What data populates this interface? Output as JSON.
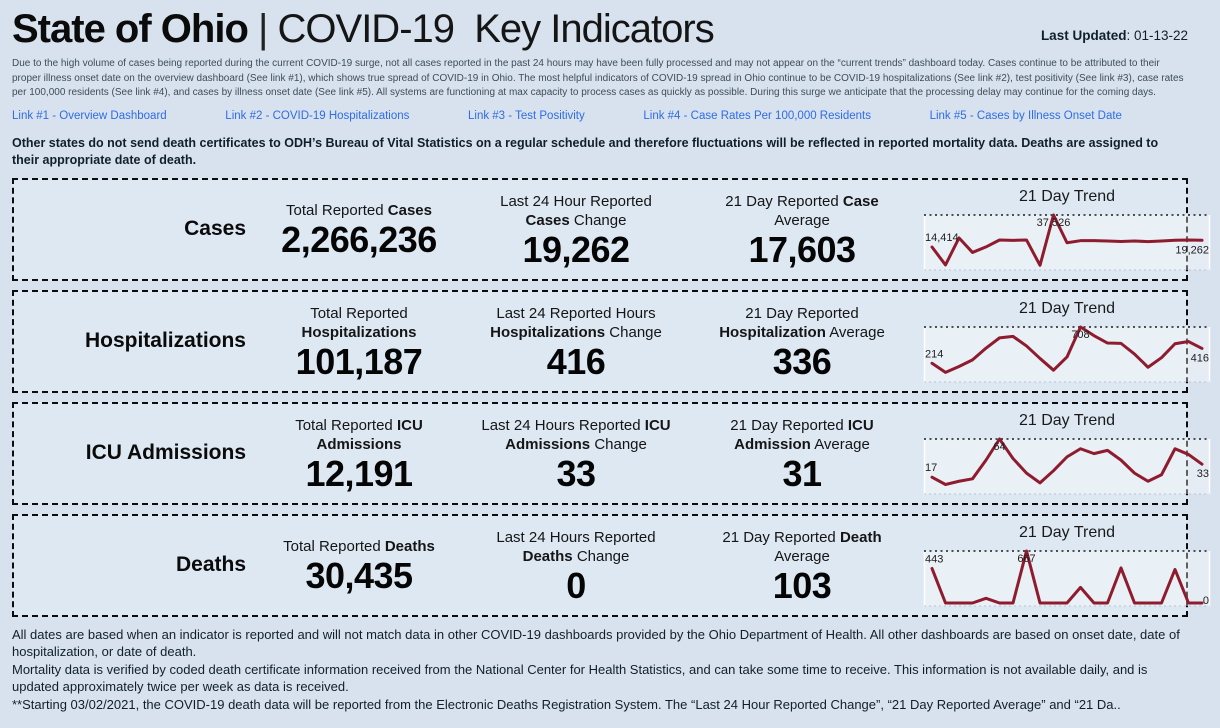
{
  "header": {
    "title_primary": "State of Ohio",
    "title_separator": " | ",
    "title_secondary": "COVID-19  Key Indicators",
    "last_updated_label": "Last Updated",
    "last_updated_value": ": 01-13-22"
  },
  "disclaimer": "Due to the high volume of cases being reported during the current COVID-19 surge, not all cases reported in the past 24 hours may have been fully processed and may not appear on the “current trends” dashboard today. Cases continue to be attributed to their proper illness onset date on the overview dashboard (See link #1), which shows true spread of COVID-19 in Ohio. The most helpful indicators of COVID-19 spread in Ohio continue to be COVID-19 hospitalizations (See link #2), test positivity (See link #3), case rates per 100,000 residents (See link #4), and cases by illness onset date (See link #5). All systems are functioning at max capacity to process cases as quickly as possible. During this surge we anticipate that the processing delay may continue for the coming days.",
  "links": [
    {
      "label": "Link #1 - Overview Dashboard"
    },
    {
      "label": "Link #2 - COVID-19 Hospitalizations"
    },
    {
      "label": "Link #3 - Test Positivity"
    },
    {
      "label": "Link #4 - Case Rates Per 100,000 Residents"
    },
    {
      "label": "Link #5 - Cases by Illness Onset Date"
    }
  ],
  "death_note": "Other states do not send death certificates to ODH’s Bureau of Vital Statistics on a regular schedule and therefore fluctuations will be reflected in reported mortality data. Deaths are assigned to their appropriate date of death.",
  "rows": [
    {
      "label": "Cases",
      "trend_title": "21 Day Trend",
      "stats": [
        {
          "heading_pre": "Total Reported ",
          "heading_bold": "Cases",
          "heading_post": "",
          "value": "2,266,236"
        },
        {
          "heading_pre": "Last 24 Hour Reported ",
          "heading_bold": "Cases",
          "heading_post": " Change",
          "value": "19,262"
        },
        {
          "heading_pre": "21 Day Reported ",
          "heading_bold": "Case",
          "heading_post": " Average",
          "value": "17,603"
        }
      ]
    },
    {
      "label": "Hospitalizations",
      "trend_title": "21 Day Trend",
      "stats": [
        {
          "heading_pre": "Total Reported ",
          "heading_bold": "Hospitalizations",
          "heading_post": "",
          "value": "101,187"
        },
        {
          "heading_pre": "Last 24 Reported Hours ",
          "heading_bold": "Hospitalizations",
          "heading_post": " Change",
          "value": "416"
        },
        {
          "heading_pre": "21 Day Reported ",
          "heading_bold": "Hospitalization",
          "heading_post": " Average",
          "value": "336"
        }
      ]
    },
    {
      "label": "ICU Admissions",
      "trend_title": "21 Day Trend",
      "stats": [
        {
          "heading_pre": "Total Reported ",
          "heading_bold": "ICU Admissions",
          "heading_post": "",
          "value": "12,191"
        },
        {
          "heading_pre": "Last 24 Hours Reported ",
          "heading_bold": "ICU Admissions",
          "heading_post": " Change",
          "value": "33"
        },
        {
          "heading_pre": "21 Day Reported ",
          "heading_bold": "ICU Admission",
          "heading_post": " Average",
          "value": "31"
        }
      ]
    },
    {
      "label": "Deaths",
      "trend_title": "21 Day Trend",
      "stats": [
        {
          "heading_pre": "Total Reported ",
          "heading_bold": "Deaths",
          "heading_post": "",
          "value": "30,435"
        },
        {
          "heading_pre": "Last 24 Hours Reported ",
          "heading_bold": "Deaths",
          "heading_post": " Change",
          "value": "0"
        },
        {
          "heading_pre": "21 Day Reported ",
          "heading_bold": "Death",
          "heading_post": " Average",
          "value": "103"
        }
      ]
    }
  ],
  "chart_data": [
    {
      "type": "line",
      "title": "21 Day Trend",
      "x_desc": "last 21 reported days",
      "values": [
        14414,
        1500,
        21000,
        10500,
        14500,
        19500,
        19200,
        19500,
        1200,
        37526,
        17500,
        19000,
        19000,
        18800,
        18400,
        18800,
        18300,
        18800,
        19300,
        19500,
        19262
      ],
      "first_label": "14,414",
      "peak_label": "37,526",
      "last_label": "19,262",
      "ylim": [
        0,
        37526
      ],
      "grid": "dotted max line and baseline",
      "legend": "none"
    },
    {
      "type": "line",
      "title": "21 Day Trend",
      "x_desc": "last 21 reported days",
      "values": [
        214,
        90,
        170,
        260,
        420,
        560,
        580,
        450,
        280,
        120,
        300,
        708,
        590,
        490,
        485,
        340,
        160,
        290,
        480,
        510,
        416
      ],
      "first_label": "214",
      "peak_label": "708",
      "last_label": "416",
      "ylim": [
        0,
        708
      ],
      "grid": "dotted max line and baseline",
      "legend": "none"
    },
    {
      "type": "line",
      "title": "21 Day Trend",
      "x_desc": "last 21 reported days",
      "values": [
        17,
        8,
        12,
        15,
        38,
        64,
        40,
        22,
        10,
        25,
        42,
        52,
        46,
        50,
        38,
        22,
        12,
        20,
        52,
        45,
        33
      ],
      "first_label": "17",
      "peak_label": "64",
      "last_label": "33",
      "ylim": [
        0,
        64
      ],
      "grid": "dotted max line and baseline",
      "legend": "none"
    },
    {
      "type": "line",
      "title": "21 Day Trend",
      "x_desc": "last 21 reported days",
      "values": [
        443,
        0,
        0,
        0,
        60,
        0,
        0,
        667,
        0,
        0,
        0,
        200,
        0,
        0,
        450,
        0,
        0,
        0,
        430,
        0,
        0
      ],
      "first_label": "443",
      "peak_label": "667",
      "last_label": "0",
      "ylim": [
        0,
        667
      ],
      "grid": "dotted max line and baseline",
      "legend": "none"
    }
  ],
  "footer": [
    "All dates are based when an indicator is reported and will not match data in other COVID-19 dashboards provided by the Ohio Department of Health. All other dashboards are based on onset date, date of hospitalization, or date of death.",
    "Mortality data is verified by coded death certificate information received from the National Center for Health Statistics, and can take some time to receive. This information is not available daily, and is updated approximately twice per week as data is received.",
    "**Starting 03/02/2021, the COVID-19 death data will be reported from the Electronic Deaths Registration System. The “Last 24 Hour Reported Change”, “21 Day Reported Average” and “21 Da.."
  ],
  "colors": {
    "page_background": "#d7e2ee",
    "box_background": "#dde8f2",
    "trend_line": "#8e1c2e",
    "link": "#2f6ce6",
    "border": "#0c0c0c"
  }
}
